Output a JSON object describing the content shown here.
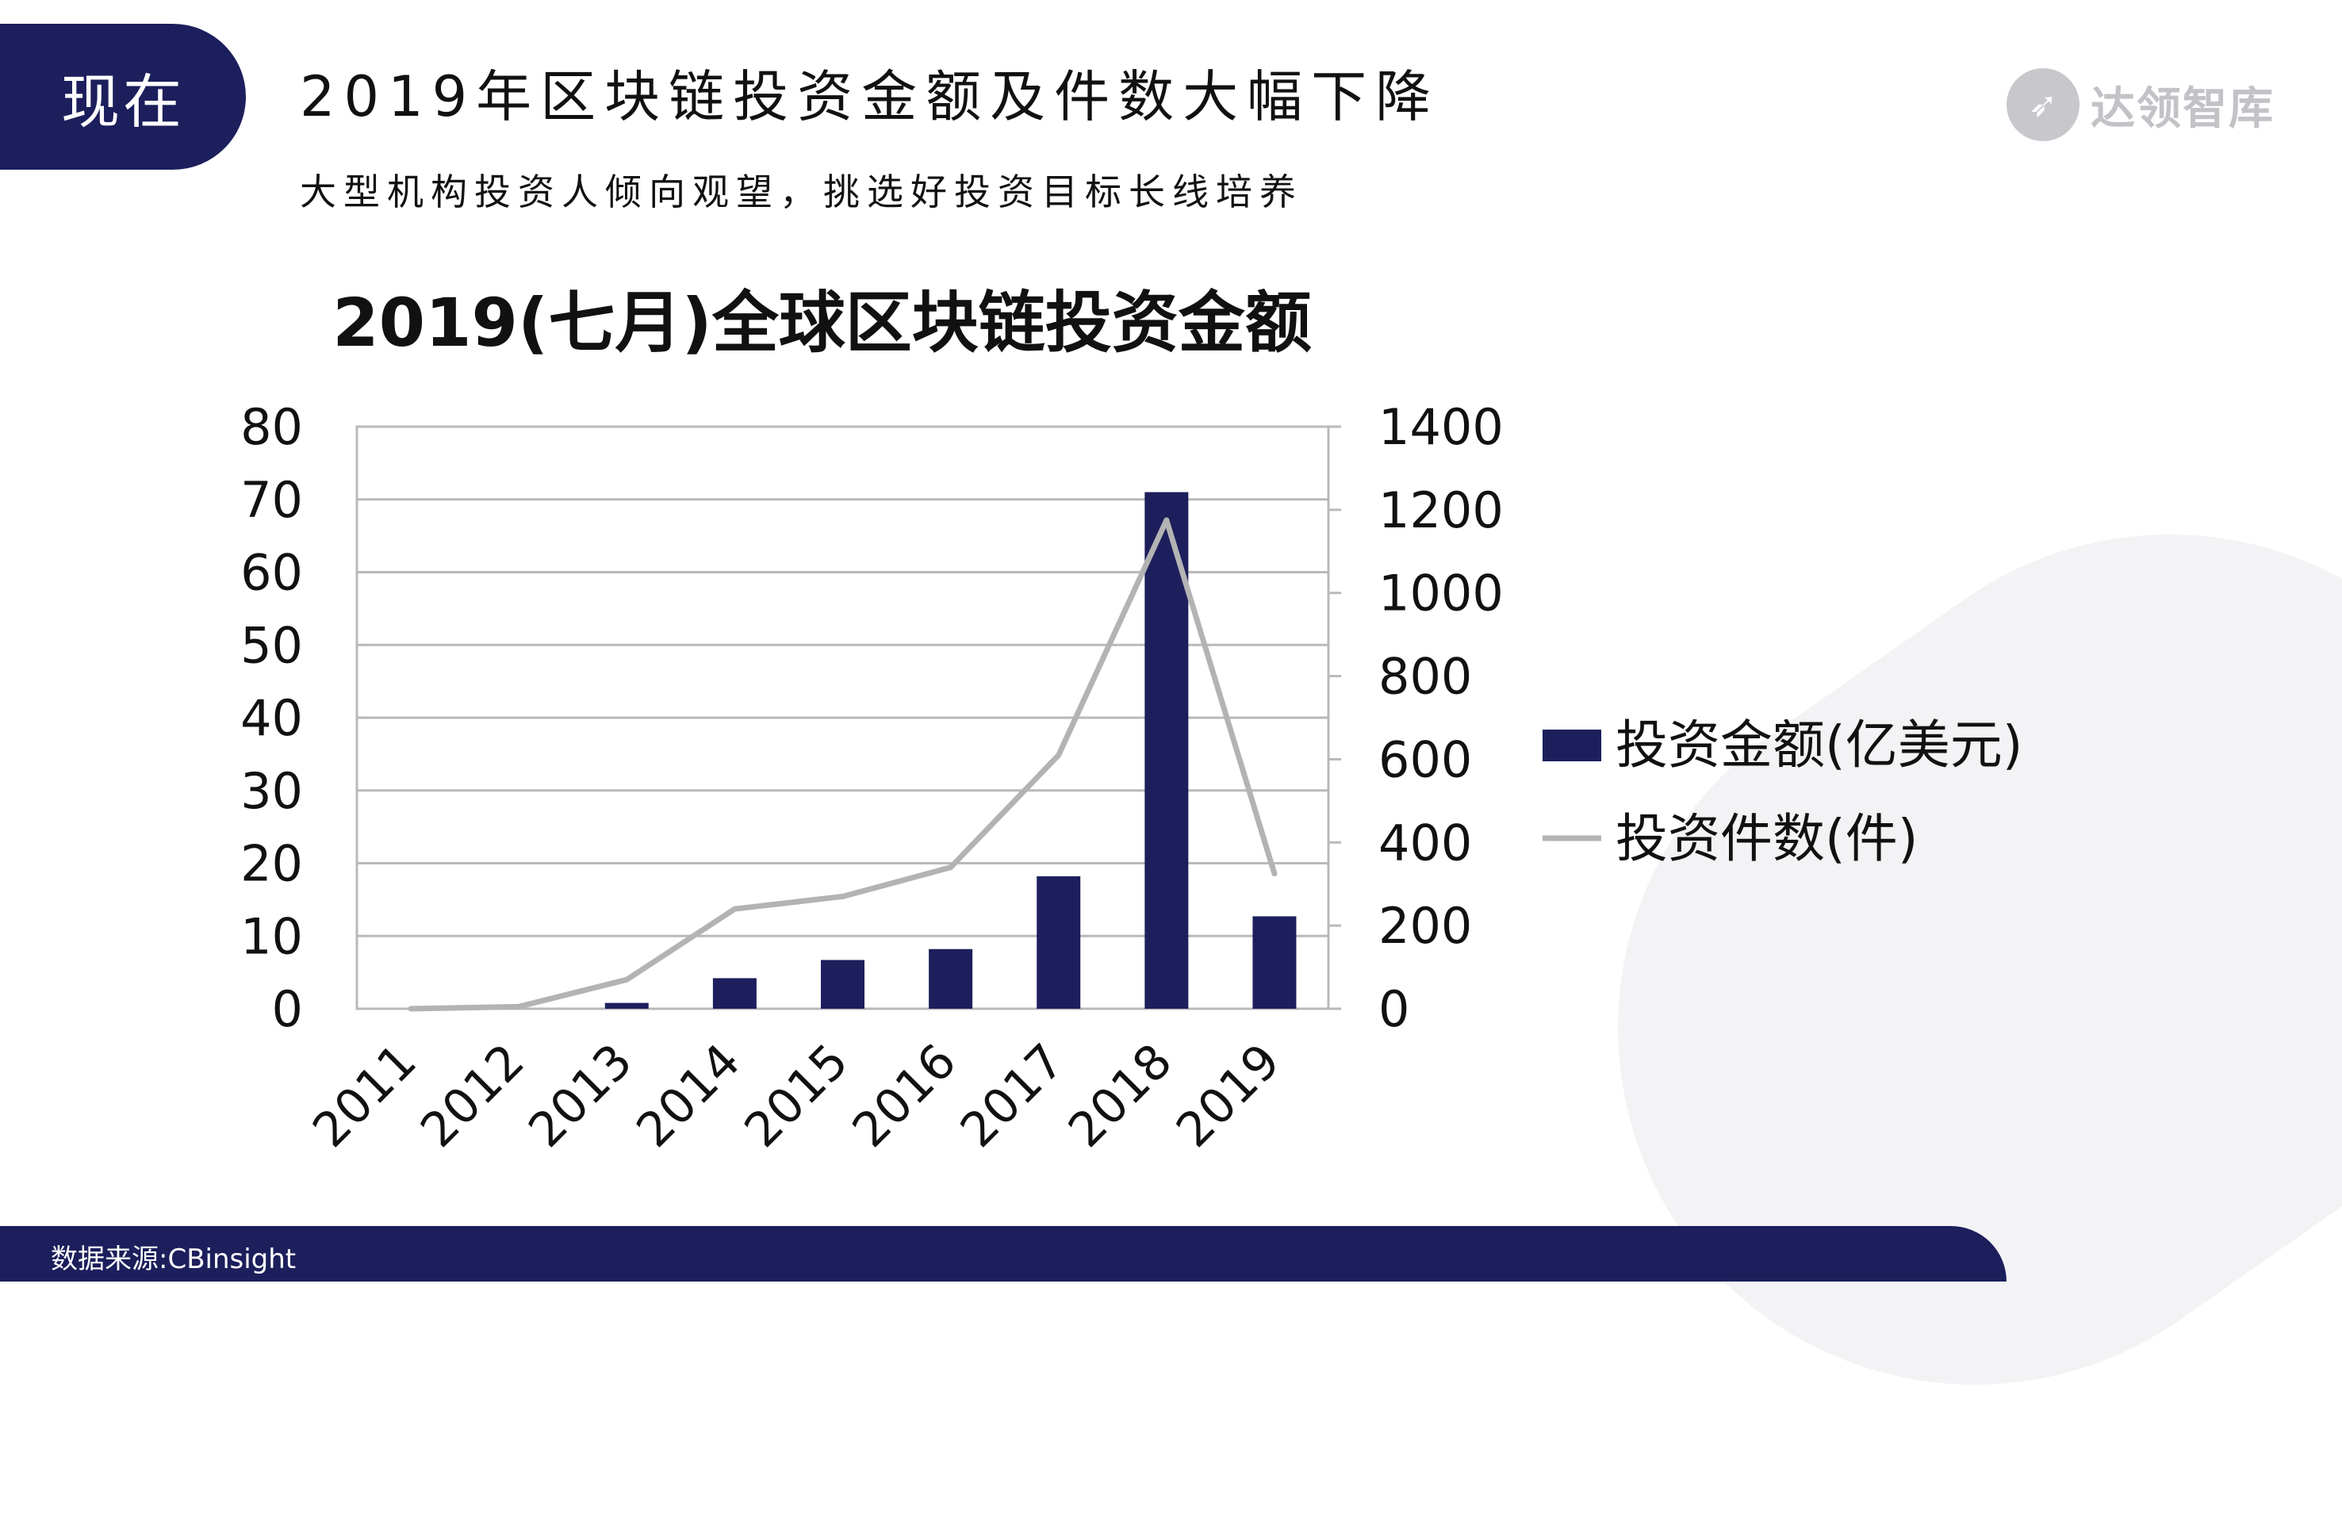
{
  "header": {
    "badge": "现在",
    "title": "2019年区块链投资金额及件数大幅下降",
    "subtitle": "大型机构投资人倾向观望，挑选好投资目标长线培养"
  },
  "logo": {
    "text": "达领智库",
    "icon": "rocket-icon"
  },
  "source": "数据来源:CBinsight",
  "colors": {
    "navy": "#1c1f5c",
    "line": "#b3b3b3",
    "grid": "#b9b9b9"
  },
  "chart_data": {
    "type": "bar",
    "title": "2019(七月)全球区块链投资金额",
    "categories": [
      "2011",
      "2012",
      "2013",
      "2014",
      "2015",
      "2016",
      "2017",
      "2018",
      "2019"
    ],
    "series": [
      {
        "name": "投资金额(亿美元)",
        "type": "bar",
        "axis": "left",
        "values": [
          0,
          0,
          0.8,
          4.2,
          6.7,
          8.2,
          18.2,
          71,
          12.7
        ]
      },
      {
        "name": "投资件数(件)",
        "type": "line",
        "axis": "right",
        "values": [
          0,
          5,
          70,
          240,
          270,
          340,
          610,
          1175,
          325
        ]
      }
    ],
    "y_left": {
      "range": [
        0,
        80
      ],
      "ticks": [
        "0",
        "10",
        "20",
        "30",
        "40",
        "50",
        "60",
        "70",
        "80"
      ]
    },
    "y_right": {
      "range": [
        0,
        1400
      ],
      "ticks": [
        "0",
        "200",
        "400",
        "600",
        "800",
        "1000",
        "1200",
        "1400"
      ]
    },
    "grid": true,
    "legend_position": "right"
  }
}
